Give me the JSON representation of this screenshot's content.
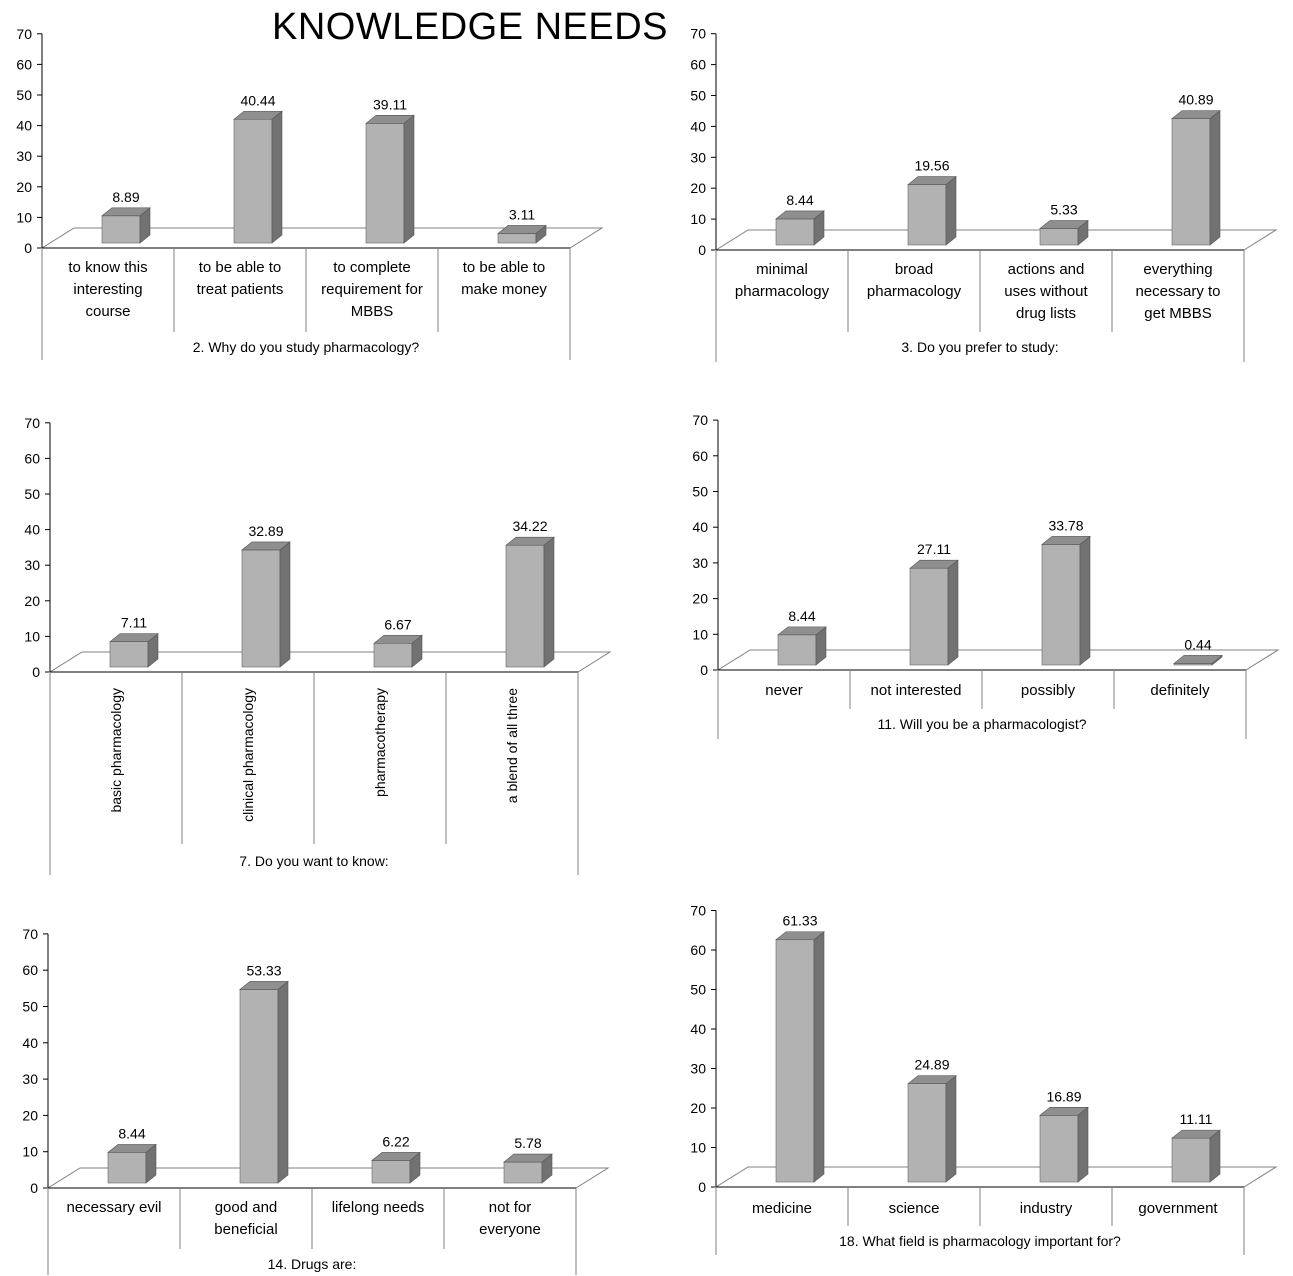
{
  "title": "KNOWLEDGE NEEDS",
  "colors": {
    "bar_front": "#b2b2b2",
    "bar_side": "#727272",
    "bar_top": "#8f8f8f",
    "axis": "#000000",
    "floor": "#808080"
  },
  "chart_data": [
    {
      "type": "bar",
      "question": "2. Why do you study pharmacology?",
      "categories": [
        [
          "to know this",
          "interesting",
          "course"
        ],
        [
          "to be able to",
          "treat patients"
        ],
        [
          "to complete",
          "requirement for",
          "MBBS"
        ],
        [
          "to be able to",
          "make money"
        ]
      ],
      "values": [
        8.89,
        40.44,
        39.11,
        3.11
      ],
      "value_labels": [
        "8.89",
        "40.44",
        "39.11",
        "3.11"
      ],
      "ylim": [
        0,
        70
      ],
      "yticks": [
        "0",
        "10",
        "20",
        "30",
        "40",
        "50",
        "60",
        "70"
      ],
      "rotated_labels": false
    },
    {
      "type": "bar",
      "question": "3. Do you prefer to study:",
      "categories": [
        [
          "minimal",
          "pharmacology"
        ],
        [
          "broad",
          "pharmacology"
        ],
        [
          "actions and",
          "uses without",
          "drug lists"
        ],
        [
          "everything",
          "necessary to",
          "get MBBS"
        ]
      ],
      "values": [
        8.44,
        19.56,
        5.33,
        40.89
      ],
      "value_labels": [
        "8.44",
        "19.56",
        "5.33",
        "40.89"
      ],
      "ylim": [
        0,
        70
      ],
      "yticks": [
        "0",
        "10",
        "20",
        "30",
        "40",
        "50",
        "60",
        "70"
      ],
      "rotated_labels": false
    },
    {
      "type": "bar",
      "question": "7. Do you want to know:",
      "categories": [
        [
          "basic pharmacology"
        ],
        [
          "clinical pharmacology"
        ],
        [
          "pharmacotherapy"
        ],
        [
          "a blend of all three"
        ]
      ],
      "values": [
        7.11,
        32.89,
        6.67,
        34.22
      ],
      "value_labels": [
        "7.11",
        "32.89",
        "6.67",
        "34.22"
      ],
      "ylim": [
        0,
        70
      ],
      "yticks": [
        "0",
        "10",
        "20",
        "30",
        "40",
        "50",
        "60",
        "70"
      ],
      "rotated_labels": true
    },
    {
      "type": "bar",
      "question": "11. Will you be a pharmacologist?",
      "categories": [
        [
          "never"
        ],
        [
          "not interested"
        ],
        [
          "possibly"
        ],
        [
          "definitely"
        ]
      ],
      "values": [
        8.44,
        27.11,
        33.78,
        0.44
      ],
      "value_labels": [
        "8.44",
        "27.11",
        "33.78",
        "0.44"
      ],
      "ylim": [
        0,
        70
      ],
      "yticks": [
        "0",
        "10",
        "20",
        "30",
        "40",
        "50",
        "60",
        "70"
      ],
      "rotated_labels": false
    },
    {
      "type": "bar",
      "question": "14. Drugs are:",
      "categories": [
        [
          "necessary evil"
        ],
        [
          "good and",
          "beneficial"
        ],
        [
          "lifelong needs"
        ],
        [
          "not for",
          "everyone"
        ]
      ],
      "values": [
        8.44,
        53.33,
        6.22,
        5.78
      ],
      "value_labels": [
        "8.44",
        "53.33",
        "6.22",
        "5.78"
      ],
      "ylim": [
        0,
        70
      ],
      "yticks": [
        "0",
        "10",
        "20",
        "30",
        "40",
        "50",
        "60",
        "70"
      ],
      "rotated_labels": false
    },
    {
      "type": "bar",
      "question": "18. What field is pharmacology important for?",
      "categories": [
        [
          "medicine"
        ],
        [
          "science"
        ],
        [
          "industry"
        ],
        [
          "government"
        ]
      ],
      "values": [
        61.33,
        24.89,
        16.89,
        11.11
      ],
      "value_labels": [
        "61.33",
        "24.89",
        "16.89",
        "11.11"
      ],
      "ylim": [
        0,
        70
      ],
      "yticks": [
        "0",
        "10",
        "20",
        "30",
        "40",
        "50",
        "60",
        "70"
      ],
      "rotated_labels": false
    }
  ]
}
